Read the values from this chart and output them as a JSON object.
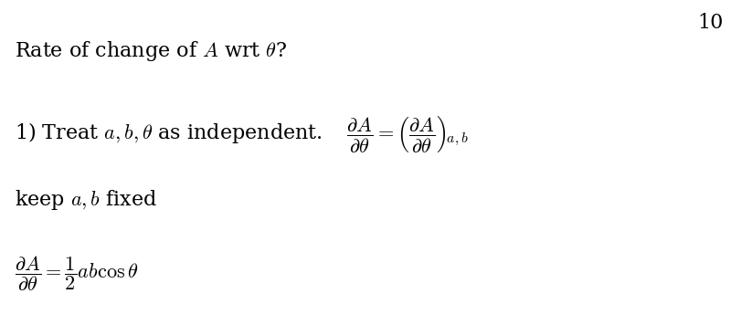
{
  "background_color": "#ffffff",
  "text_color": "#000000",
  "page_number": "10",
  "line1": "Rate of change of $A$ wrt $\\theta$?",
  "line2": "1) Treat $a, b, \\theta$ as independent. $\\quad\\dfrac{\\partial A}{\\partial \\theta} = \\left(\\dfrac{\\partial A}{\\partial \\theta}\\right)_{\\!a,b}$",
  "line3": "keep $a, b$ fixed",
  "line4": "$\\dfrac{\\partial A}{\\partial \\theta} = \\dfrac{1}{2}ab\\cos\\theta$",
  "font_size_main": 16,
  "font_size_page": 16
}
